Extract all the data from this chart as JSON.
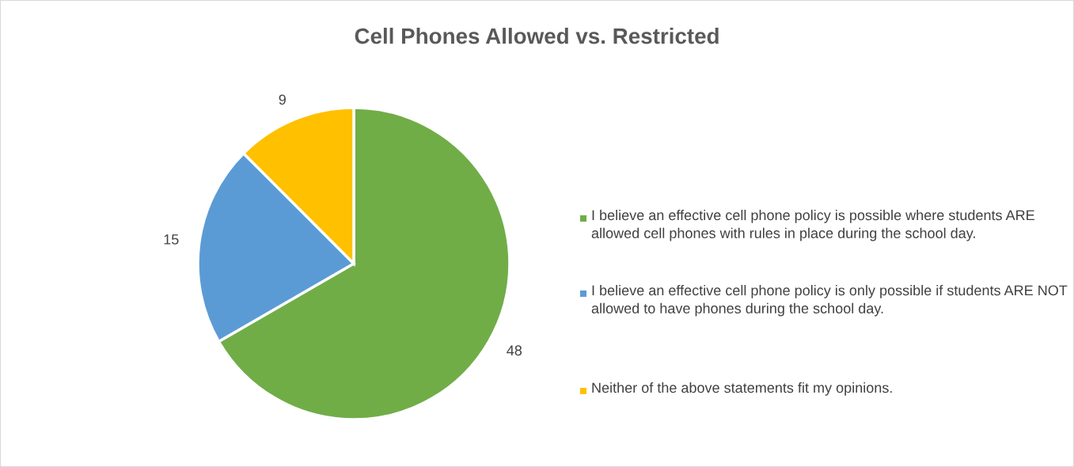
{
  "chart_data": {
    "type": "pie",
    "title": "Cell Phones Allowed vs. Restricted",
    "categories": [
      "I believe an effective cell phone policy is possible where students ARE allowed cell phones with rules in place during the school day.",
      "I believe an effective cell phone policy is only possible if students ARE NOT allowed to have phones during the school day.",
      "Neither of the above statements fit my opinions."
    ],
    "values": [
      48,
      15,
      9
    ],
    "colors": [
      "#70ad47",
      "#5b9bd5",
      "#ffc000"
    ],
    "data_labels": true,
    "legend": "right"
  }
}
